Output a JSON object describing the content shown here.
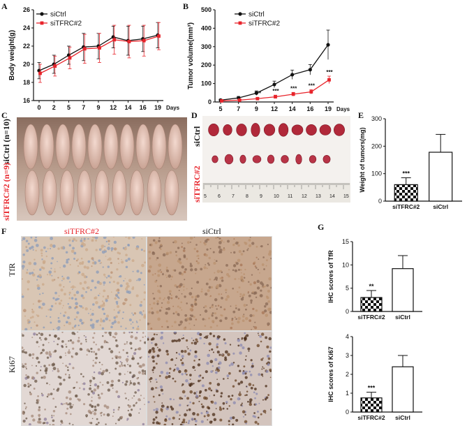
{
  "panels": {
    "a": "A",
    "b": "B",
    "c": "C",
    "d": "D",
    "e": "E",
    "f": "F",
    "g": "G"
  },
  "colors": {
    "ctrl": "#111111",
    "tfrc": "#e8242b",
    "red_label": "#e8242b"
  },
  "chart_data": [
    {
      "id": "A",
      "type": "line",
      "ylabel": "Body weight(g)",
      "xlabel": "Days",
      "categories": [
        "0",
        "2",
        "5",
        "7",
        "9",
        "12",
        "14",
        "16",
        "19"
      ],
      "ylim": [
        16,
        26
      ],
      "yticks": [
        16,
        18,
        20,
        22,
        24,
        26
      ],
      "legend": "top-left",
      "series": [
        {
          "name": "siCtrl",
          "values": [
            19.3,
            20.0,
            21.0,
            21.9,
            22.0,
            23.0,
            22.6,
            22.8,
            23.2
          ],
          "err": [
            0.9,
            1.0,
            1.0,
            1.5,
            1.4,
            1.2,
            1.6,
            1.4,
            1.4
          ]
        },
        {
          "name": "siTFRC#2",
          "values": [
            19.0,
            19.8,
            20.7,
            21.7,
            21.8,
            22.7,
            22.5,
            22.6,
            23.1
          ],
          "err": [
            1.0,
            1.1,
            1.2,
            1.6,
            1.6,
            1.6,
            1.8,
            1.7,
            1.5
          ]
        }
      ]
    },
    {
      "id": "B",
      "type": "line",
      "ylabel": "Tumor volume(mm³)",
      "xlabel": "Days",
      "categories": [
        "5",
        "7",
        "9",
        "12",
        "14",
        "16",
        "19"
      ],
      "ylim": [
        0,
        500
      ],
      "yticks": [
        0,
        100,
        200,
        300,
        400,
        500
      ],
      "legend": "top-left",
      "series": [
        {
          "name": "siCtrl",
          "values": [
            10,
            22,
            48,
            95,
            148,
            175,
            310
          ],
          "err": [
            5,
            8,
            12,
            18,
            25,
            28,
            80
          ]
        },
        {
          "name": "siTFRC#2",
          "values": [
            6,
            10,
            18,
            28,
            42,
            55,
            120
          ],
          "err": [
            3,
            5,
            7,
            9,
            10,
            12,
            20
          ]
        }
      ],
      "annotations": [
        "***",
        "***",
        "***",
        "***",
        "***"
      ]
    },
    {
      "id": "E",
      "type": "bar",
      "ylabel": "Weight of tumors(mg)",
      "categories": [
        "siTFRC#2",
        "siCtrl"
      ],
      "values": [
        60,
        178
      ],
      "err": [
        25,
        65
      ],
      "ylim": [
        0,
        300
      ],
      "yticks": [
        0,
        100,
        200,
        300
      ],
      "annotation": "***"
    },
    {
      "id": "G1",
      "type": "bar",
      "ylabel": "IHC scores of TfR",
      "categories": [
        "siTFRC#2",
        "siCtrl"
      ],
      "values": [
        3.0,
        9.2
      ],
      "err": [
        1.5,
        2.8
      ],
      "ylim": [
        0,
        15
      ],
      "yticks": [
        0,
        5,
        10,
        15
      ],
      "annotation": "**"
    },
    {
      "id": "G2",
      "type": "bar",
      "ylabel": "IHC scores of Ki67",
      "categories": [
        "siTFRC#2",
        "siCtrl"
      ],
      "values": [
        0.75,
        2.4
      ],
      "err": [
        0.3,
        0.6
      ],
      "ylim": [
        0,
        4
      ],
      "yticks": [
        0,
        1,
        2,
        3,
        4
      ],
      "annotation": "***"
    }
  ],
  "photo_c": {
    "label_ctrl": "siCtrl",
    "n_ctrl": "(n=10)",
    "label_tfrc": "siTFRC#2",
    "n_tfrc": "(n=9)"
  },
  "photo_d": {
    "label_ctrl": "siCtrl",
    "label_tfrc": "siTFRC#2",
    "ruler": [
      "5",
      "6",
      "7",
      "8",
      "9",
      "10",
      "11",
      "12",
      "13",
      "14",
      "15"
    ]
  },
  "ihc": {
    "col_tfrc": "siTFRC#2",
    "col_ctrl": "siCtrl",
    "row_tfr": "TfR",
    "row_ki67": "Ki67"
  }
}
